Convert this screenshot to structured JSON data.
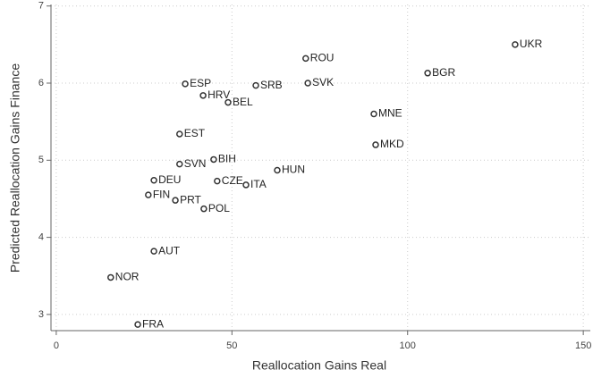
{
  "chart_data": {
    "type": "scatter",
    "x_label": "Reallocation Gains Real",
    "y_label": "Predicted Reallocation Gains Finance",
    "labels": [
      "UKR",
      "BGR",
      "ROU",
      "SVK",
      "SRB",
      "ESP",
      "HRV",
      "BEL",
      "MNE",
      "EST",
      "MKD",
      "BIH",
      "SVN",
      "HUN",
      "DEU",
      "CZE",
      "ITA",
      "FIN",
      "PRT",
      "POL",
      "AUT",
      "NOR",
      "FRA"
    ],
    "x": [
      130.6,
      105.7,
      71.0,
      71.6,
      56.8,
      36.7,
      41.8,
      48.9,
      90.4,
      35.1,
      90.9,
      44.8,
      35.1,
      62.9,
      27.8,
      45.8,
      54.0,
      26.2,
      33.9,
      42.0,
      27.8,
      15.5,
      23.2
    ],
    "values": [
      6.5,
      6.13,
      6.32,
      6.0,
      5.97,
      5.99,
      5.84,
      5.75,
      5.6,
      5.34,
      5.2,
      5.01,
      4.95,
      4.87,
      4.74,
      4.73,
      4.68,
      4.55,
      4.48,
      4.37,
      3.82,
      3.48,
      2.87
    ],
    "color": "#333333",
    "xlim": [
      -1.5,
      152
    ],
    "xticks": [
      0,
      50,
      100,
      150
    ],
    "ylim": [
      2.79,
      7.02
    ],
    "yticks": [
      3,
      4,
      5,
      6,
      7
    ],
    "grid": true
  }
}
